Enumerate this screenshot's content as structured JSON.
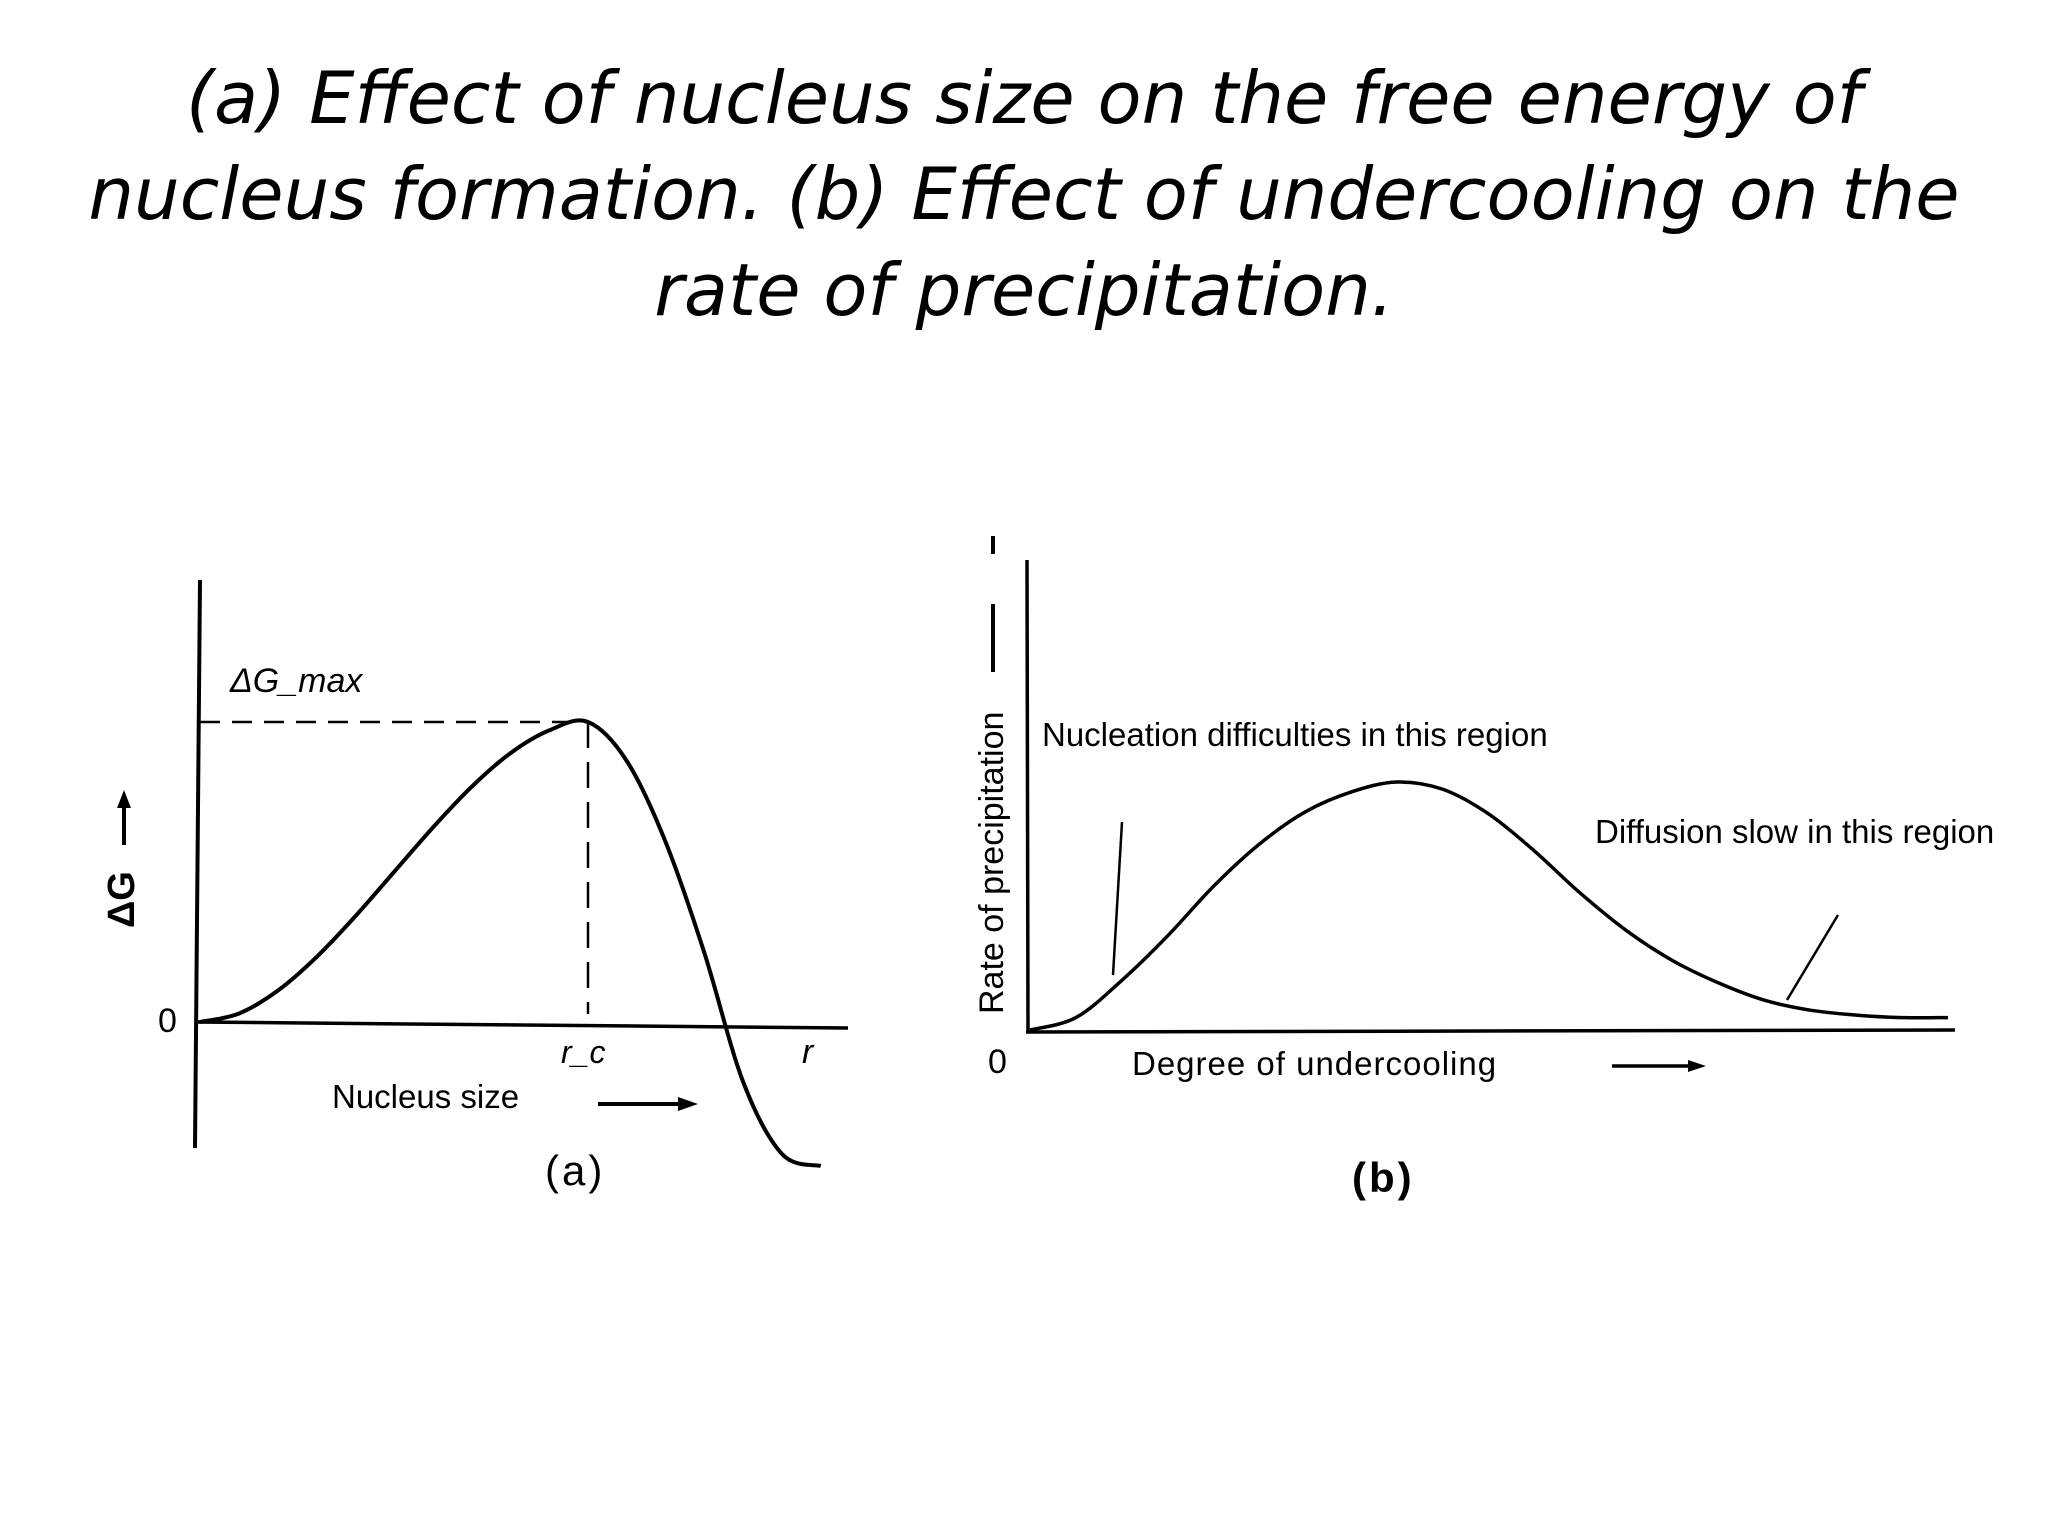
{
  "title": "(a) Effect of nucleus size on the free energy of nucleus formation. (b) Effect of undercooling on the rate of precipitation.",
  "chart_data": [
    {
      "type": "line",
      "panel_label": "(a)",
      "xlabel": "Nucleus size",
      "ylabel": "ΔG",
      "x_ticks": [
        "r_c",
        "r"
      ],
      "y_ticks": [
        "0"
      ],
      "annotations": [
        "ΔG_max"
      ],
      "xlim": [
        0,
        1.65
      ],
      "ylim": [
        -0.45,
        1.1
      ],
      "series": [
        {
          "name": "ΔG vs nucleus size",
          "x": [
            0,
            0.1,
            0.2,
            0.3,
            0.4,
            0.5,
            0.6,
            0.7,
            0.8,
            0.9,
            1.0,
            1.1,
            1.2,
            1.3,
            1.4,
            1.5,
            1.6
          ],
          "y": [
            0,
            0.028,
            0.104,
            0.216,
            0.352,
            0.5,
            0.648,
            0.784,
            0.896,
            0.972,
            1.0,
            0.87,
            0.6,
            0.23,
            -0.2,
            -0.44,
            -0.48
          ]
        }
      ],
      "critical_point": {
        "x": 1.0,
        "y": 1.0
      },
      "zero_crossing_x": 1.35
    },
    {
      "type": "line",
      "panel_label": "(b)",
      "xlabel": "Degree of undercooling",
      "ylabel": "Rate of precipitation",
      "y_ticks": [
        "0"
      ],
      "annotations": [
        "Nucleation difficulties in this region",
        "Diffusion slow in this region"
      ],
      "xlim": [
        0,
        1.0
      ],
      "ylim": [
        0,
        1.0
      ],
      "series": [
        {
          "name": "Rate of precipitation vs undercooling",
          "x": [
            0,
            0.05,
            0.1,
            0.15,
            0.2,
            0.25,
            0.3,
            0.35,
            0.4,
            0.45,
            0.5,
            0.55,
            0.6,
            0.65,
            0.7,
            0.75,
            0.8,
            0.85,
            0.9,
            0.95,
            1.0
          ],
          "y": [
            0,
            0.05,
            0.2,
            0.38,
            0.58,
            0.75,
            0.88,
            0.96,
            1.0,
            0.97,
            0.87,
            0.72,
            0.55,
            0.4,
            0.28,
            0.19,
            0.12,
            0.08,
            0.06,
            0.05,
            0.05
          ]
        }
      ]
    }
  ]
}
